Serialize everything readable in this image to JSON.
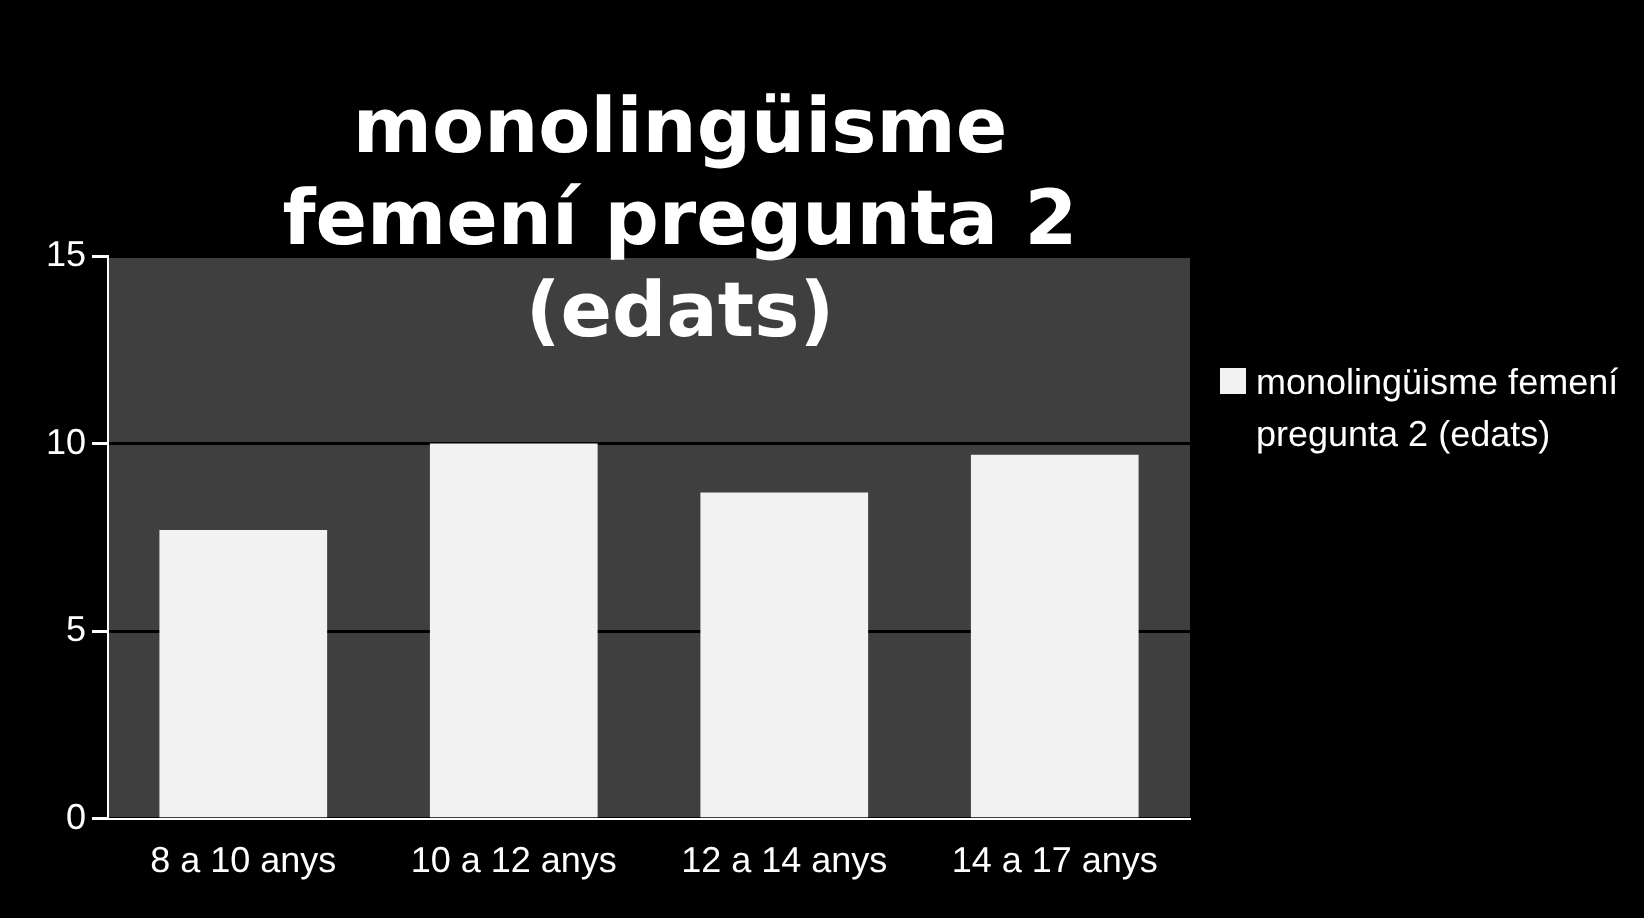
{
  "chart_data": {
    "type": "bar",
    "title": "monolingüisme femení pregunta 2 (edats)",
    "categories": [
      "8 a 10 anys",
      "10 a 12 anys",
      "12 a 14 anys",
      "14 a 17 anys"
    ],
    "series": [
      {
        "name": "monolingüisme femení pregunta 2 (edats)",
        "color": "#f2f2f2",
        "values": [
          7.7,
          10,
          8.7,
          9.7
        ]
      }
    ],
    "ylim": [
      0,
      15
    ],
    "yticks": [
      0,
      5,
      10,
      15
    ],
    "grid": "y",
    "legend": "right"
  }
}
